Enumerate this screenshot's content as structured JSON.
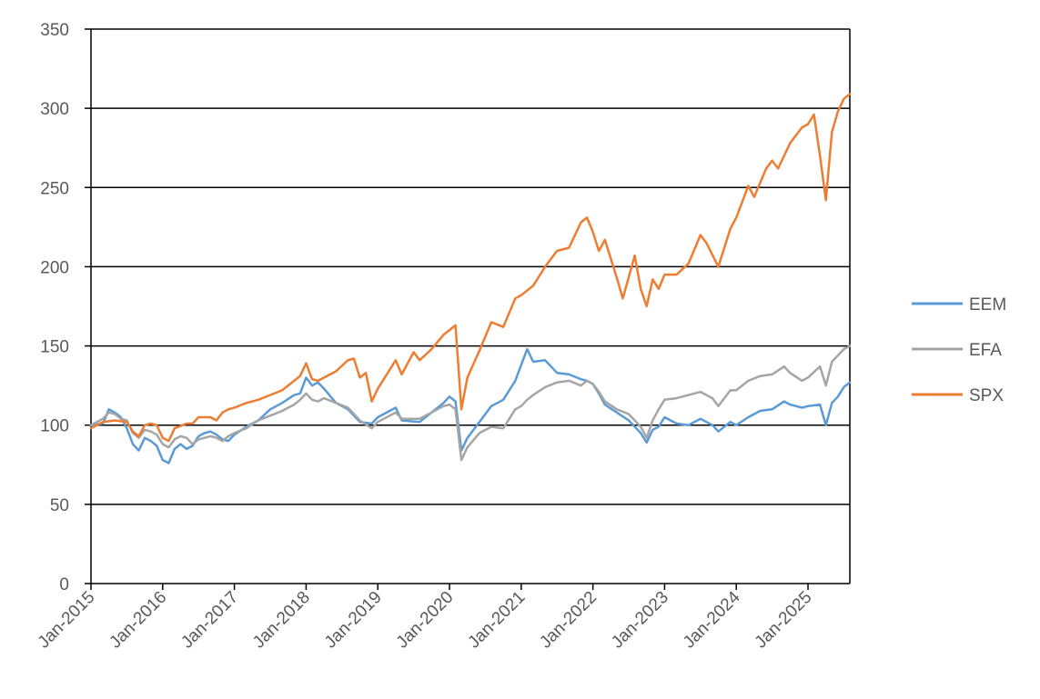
{
  "chart_data": {
    "type": "line",
    "title": "",
    "xlabel": "",
    "ylabel": "",
    "ylim": [
      0,
      350
    ],
    "yticks": [
      0,
      50,
      100,
      150,
      200,
      250,
      300,
      350
    ],
    "x_tick_labels": [
      "Jan-2015",
      "Jan-2016",
      "Jan-2017",
      "Jan-2018",
      "Jan-2019",
      "Jan-2020",
      "Jan-2021",
      "Jan-2022",
      "Jan-2023",
      "Jan-2024",
      "Jan-2025"
    ],
    "xlim": [
      "2015-01",
      "2025-08"
    ],
    "grid": "horizontal",
    "legend_position": "right",
    "series": [
      {
        "name": "EEM",
        "color": "#5B9BD5",
        "points": [
          [
            "2015-01",
            100
          ],
          [
            "2015-03",
            101
          ],
          [
            "2015-04",
            110
          ],
          [
            "2015-05",
            108
          ],
          [
            "2015-06",
            105
          ],
          [
            "2015-07",
            98
          ],
          [
            "2015-08",
            88
          ],
          [
            "2015-09",
            84
          ],
          [
            "2015-10",
            92
          ],
          [
            "2015-11",
            90
          ],
          [
            "2015-12",
            87
          ],
          [
            "2016-01",
            78
          ],
          [
            "2016-02",
            76
          ],
          [
            "2016-03",
            85
          ],
          [
            "2016-04",
            88
          ],
          [
            "2016-05",
            85
          ],
          [
            "2016-06",
            87
          ],
          [
            "2016-07",
            93
          ],
          [
            "2016-08",
            95
          ],
          [
            "2016-09",
            96
          ],
          [
            "2016-10",
            94
          ],
          [
            "2016-11",
            91
          ],
          [
            "2016-12",
            90
          ],
          [
            "2017-01",
            94
          ],
          [
            "2017-03",
            99
          ],
          [
            "2017-05",
            103
          ],
          [
            "2017-07",
            110
          ],
          [
            "2017-09",
            114
          ],
          [
            "2017-11",
            119
          ],
          [
            "2017-12",
            120
          ],
          [
            "2018-01",
            130
          ],
          [
            "2018-02",
            125
          ],
          [
            "2018-03",
            127
          ],
          [
            "2018-04",
            123
          ],
          [
            "2018-06",
            114
          ],
          [
            "2018-08",
            110
          ],
          [
            "2018-10",
            102
          ],
          [
            "2018-12",
            101
          ],
          [
            "2019-01",
            105
          ],
          [
            "2019-04",
            111
          ],
          [
            "2019-05",
            103
          ],
          [
            "2019-08",
            102
          ],
          [
            "2019-10",
            108
          ],
          [
            "2019-12",
            114
          ],
          [
            "2020-01",
            118
          ],
          [
            "2020-02",
            115
          ],
          [
            "2020-03",
            84
          ],
          [
            "2020-04",
            92
          ],
          [
            "2020-06",
            102
          ],
          [
            "2020-08",
            112
          ],
          [
            "2020-10",
            116
          ],
          [
            "2020-12",
            128
          ],
          [
            "2021-01",
            138
          ],
          [
            "2021-02",
            148
          ],
          [
            "2021-03",
            140
          ],
          [
            "2021-05",
            141
          ],
          [
            "2021-07",
            133
          ],
          [
            "2021-09",
            132
          ],
          [
            "2021-11",
            129
          ],
          [
            "2021-12",
            128
          ],
          [
            "2022-01",
            126
          ],
          [
            "2022-02",
            120
          ],
          [
            "2022-03",
            113
          ],
          [
            "2022-05",
            108
          ],
          [
            "2022-07",
            103
          ],
          [
            "2022-09",
            95
          ],
          [
            "2022-10",
            89
          ],
          [
            "2022-11",
            97
          ],
          [
            "2022-12",
            99
          ],
          [
            "2023-01",
            105
          ],
          [
            "2023-03",
            101
          ],
          [
            "2023-05",
            100
          ],
          [
            "2023-07",
            104
          ],
          [
            "2023-09",
            100
          ],
          [
            "2023-10",
            96
          ],
          [
            "2023-12",
            102
          ],
          [
            "2024-01",
            100
          ],
          [
            "2024-03",
            105
          ],
          [
            "2024-05",
            109
          ],
          [
            "2024-07",
            110
          ],
          [
            "2024-09",
            115
          ],
          [
            "2024-10",
            113
          ],
          [
            "2024-12",
            111
          ],
          [
            "2025-01",
            112
          ],
          [
            "2025-03",
            113
          ],
          [
            "2025-04",
            100
          ],
          [
            "2025-05",
            114
          ],
          [
            "2025-06",
            118
          ],
          [
            "2025-07",
            124
          ],
          [
            "2025-08",
            127
          ]
        ]
      },
      {
        "name": "EFA",
        "color": "#A5A5A5",
        "points": [
          [
            "2015-01",
            100
          ],
          [
            "2015-03",
            104
          ],
          [
            "2015-04",
            108
          ],
          [
            "2015-05",
            107
          ],
          [
            "2015-06",
            104
          ],
          [
            "2015-07",
            103
          ],
          [
            "2015-08",
            95
          ],
          [
            "2015-09",
            92
          ],
          [
            "2015-10",
            97
          ],
          [
            "2015-11",
            96
          ],
          [
            "2015-12",
            94
          ],
          [
            "2016-01",
            88
          ],
          [
            "2016-02",
            86
          ],
          [
            "2016-03",
            91
          ],
          [
            "2016-04",
            93
          ],
          [
            "2016-05",
            92
          ],
          [
            "2016-06",
            88
          ],
          [
            "2016-07",
            91
          ],
          [
            "2016-08",
            92
          ],
          [
            "2016-09",
            93
          ],
          [
            "2016-10",
            92
          ],
          [
            "2016-11",
            90
          ],
          [
            "2016-12",
            93
          ],
          [
            "2017-01",
            95
          ],
          [
            "2017-03",
            98
          ],
          [
            "2017-05",
            103
          ],
          [
            "2017-07",
            106
          ],
          [
            "2017-09",
            109
          ],
          [
            "2017-11",
            113
          ],
          [
            "2017-12",
            116
          ],
          [
            "2018-01",
            120
          ],
          [
            "2018-02",
            116
          ],
          [
            "2018-03",
            115
          ],
          [
            "2018-04",
            117
          ],
          [
            "2018-06",
            114
          ],
          [
            "2018-08",
            111
          ],
          [
            "2018-10",
            103
          ],
          [
            "2018-12",
            98
          ],
          [
            "2019-01",
            102
          ],
          [
            "2019-04",
            108
          ],
          [
            "2019-05",
            104
          ],
          [
            "2019-08",
            104
          ],
          [
            "2019-10",
            108
          ],
          [
            "2019-12",
            112
          ],
          [
            "2020-01",
            113
          ],
          [
            "2020-02",
            110
          ],
          [
            "2020-03",
            78
          ],
          [
            "2020-04",
            86
          ],
          [
            "2020-06",
            95
          ],
          [
            "2020-08",
            99
          ],
          [
            "2020-10",
            98
          ],
          [
            "2020-12",
            110
          ],
          [
            "2021-01",
            112
          ],
          [
            "2021-02",
            116
          ],
          [
            "2021-03",
            119
          ],
          [
            "2021-05",
            124
          ],
          [
            "2021-07",
            127
          ],
          [
            "2021-09",
            128
          ],
          [
            "2021-11",
            125
          ],
          [
            "2021-12",
            128
          ],
          [
            "2022-01",
            126
          ],
          [
            "2022-02",
            121
          ],
          [
            "2022-03",
            115
          ],
          [
            "2022-05",
            110
          ],
          [
            "2022-07",
            107
          ],
          [
            "2022-09",
            99
          ],
          [
            "2022-10",
            92
          ],
          [
            "2022-11",
            103
          ],
          [
            "2022-12",
            110
          ],
          [
            "2023-01",
            116
          ],
          [
            "2023-03",
            117
          ],
          [
            "2023-05",
            119
          ],
          [
            "2023-07",
            121
          ],
          [
            "2023-09",
            117
          ],
          [
            "2023-10",
            112
          ],
          [
            "2023-12",
            122
          ],
          [
            "2024-01",
            122
          ],
          [
            "2024-03",
            128
          ],
          [
            "2024-05",
            131
          ],
          [
            "2024-07",
            132
          ],
          [
            "2024-09",
            137
          ],
          [
            "2024-10",
            133
          ],
          [
            "2024-12",
            128
          ],
          [
            "2025-01",
            130
          ],
          [
            "2025-03",
            137
          ],
          [
            "2025-04",
            125
          ],
          [
            "2025-05",
            140
          ],
          [
            "2025-06",
            144
          ],
          [
            "2025-07",
            148
          ],
          [
            "2025-08",
            150
          ]
        ]
      },
      {
        "name": "SPX",
        "color": "#ED7D31",
        "points": [
          [
            "2015-01",
            98
          ],
          [
            "2015-03",
            102
          ],
          [
            "2015-05",
            103
          ],
          [
            "2015-07",
            102
          ],
          [
            "2015-08",
            96
          ],
          [
            "2015-09",
            93
          ],
          [
            "2015-10",
            100
          ],
          [
            "2015-11",
            101
          ],
          [
            "2015-12",
            100
          ],
          [
            "2016-01",
            92
          ],
          [
            "2016-02",
            90
          ],
          [
            "2016-03",
            98
          ],
          [
            "2016-05",
            101
          ],
          [
            "2016-06",
            101
          ],
          [
            "2016-07",
            105
          ],
          [
            "2016-09",
            105
          ],
          [
            "2016-10",
            103
          ],
          [
            "2016-11",
            108
          ],
          [
            "2016-12",
            110
          ],
          [
            "2017-01",
            111
          ],
          [
            "2017-03",
            114
          ],
          [
            "2017-05",
            116
          ],
          [
            "2017-07",
            119
          ],
          [
            "2017-09",
            122
          ],
          [
            "2017-11",
            128
          ],
          [
            "2017-12",
            131
          ],
          [
            "2018-01",
            139
          ],
          [
            "2018-02",
            129
          ],
          [
            "2018-03",
            128
          ],
          [
            "2018-04",
            130
          ],
          [
            "2018-06",
            134
          ],
          [
            "2018-08",
            141
          ],
          [
            "2018-09",
            142
          ],
          [
            "2018-10",
            130
          ],
          [
            "2018-11",
            133
          ],
          [
            "2018-12",
            115
          ],
          [
            "2019-01",
            123
          ],
          [
            "2019-04",
            141
          ],
          [
            "2019-05",
            132
          ],
          [
            "2019-07",
            146
          ],
          [
            "2019-08",
            141
          ],
          [
            "2019-10",
            148
          ],
          [
            "2019-12",
            157
          ],
          [
            "2020-01",
            160
          ],
          [
            "2020-02",
            163
          ],
          [
            "2020-03",
            110
          ],
          [
            "2020-04",
            130
          ],
          [
            "2020-06",
            147
          ],
          [
            "2020-08",
            165
          ],
          [
            "2020-10",
            162
          ],
          [
            "2020-12",
            180
          ],
          [
            "2021-01",
            182
          ],
          [
            "2021-03",
            188
          ],
          [
            "2021-05",
            200
          ],
          [
            "2021-07",
            210
          ],
          [
            "2021-09",
            212
          ],
          [
            "2021-11",
            228
          ],
          [
            "2021-12",
            231
          ],
          [
            "2022-01",
            222
          ],
          [
            "2022-02",
            210
          ],
          [
            "2022-03",
            217
          ],
          [
            "2022-05",
            193
          ],
          [
            "2022-06",
            180
          ],
          [
            "2022-08",
            207
          ],
          [
            "2022-09",
            186
          ],
          [
            "2022-10",
            175
          ],
          [
            "2022-11",
            192
          ],
          [
            "2022-12",
            186
          ],
          [
            "2023-01",
            195
          ],
          [
            "2023-03",
            195
          ],
          [
            "2023-05",
            202
          ],
          [
            "2023-07",
            220
          ],
          [
            "2023-08",
            215
          ],
          [
            "2023-10",
            200
          ],
          [
            "2023-12",
            224
          ],
          [
            "2024-01",
            231
          ],
          [
            "2024-03",
            251
          ],
          [
            "2024-04",
            244
          ],
          [
            "2024-06",
            262
          ],
          [
            "2024-07",
            267
          ],
          [
            "2024-08",
            262
          ],
          [
            "2024-10",
            278
          ],
          [
            "2024-12",
            288
          ],
          [
            "2025-01",
            290
          ],
          [
            "2025-02",
            296
          ],
          [
            "2025-03",
            270
          ],
          [
            "2025-04",
            242
          ],
          [
            "2025-05",
            285
          ],
          [
            "2025-06",
            298
          ],
          [
            "2025-07",
            306
          ],
          [
            "2025-08",
            309
          ]
        ]
      }
    ]
  }
}
